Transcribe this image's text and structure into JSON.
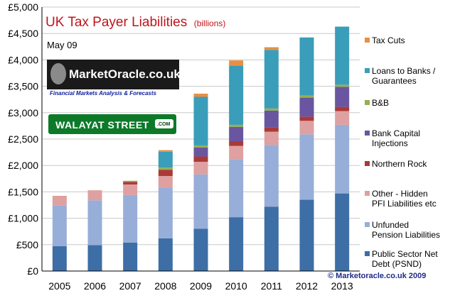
{
  "chart_data": {
    "type": "bar",
    "stacked": true,
    "title": "UK Tax Payer Liabilities",
    "subtitle": "(billions)",
    "date_label": "May 09",
    "categories": [
      "2005",
      "2006",
      "2007",
      "2008",
      "2009",
      "2010",
      "2011",
      "2012",
      "2013"
    ],
    "ylim": [
      0,
      5000
    ],
    "y_ticks": [
      "£0",
      "£500",
      "£1,000",
      "£1,500",
      "£2,000",
      "£2,500",
      "£3,000",
      "£3,500",
      "£4,000",
      "£4,500",
      "£5,000"
    ],
    "y_tick_values": [
      0,
      500,
      1000,
      1500,
      2000,
      2500,
      3000,
      3500,
      4000,
      4500,
      5000
    ],
    "grid": true,
    "legend_position": "right",
    "series": [
      {
        "name": "Public Sector Net Debt (PSND)",
        "legend_lines": [
          "Public Sector Net",
          "Debt (PSND)"
        ],
        "color": "#3d6ea6",
        "values": [
          470,
          490,
          540,
          620,
          800,
          1020,
          1220,
          1350,
          1470
        ]
      },
      {
        "name": "Unfunded Pension Liabilities",
        "legend_lines": [
          "Unfunded",
          "Pension Liabilities"
        ],
        "color": "#97aed8",
        "values": [
          770,
          850,
          900,
          960,
          1030,
          1100,
          1170,
          1240,
          1300
        ]
      },
      {
        "name": "Other - Hidden PFI Liabilities etc",
        "legend_lines": [
          "Other - Hidden",
          "PFI Liabilities etc"
        ],
        "color": "#dea0a0",
        "values": [
          185,
          190,
          200,
          220,
          240,
          250,
          250,
          255,
          260
        ]
      },
      {
        "name": "Northern Rock",
        "legend_lines": [
          "Northern Rock"
        ],
        "color": "#a93a38",
        "values": [
          0,
          0,
          50,
          120,
          100,
          90,
          80,
          80,
          80
        ]
      },
      {
        "name": "Bank Capital Injections",
        "legend_lines": [
          "Bank Capital",
          "Injections"
        ],
        "color": "#6a55a0",
        "values": [
          0,
          0,
          0,
          0,
          170,
          270,
          320,
          360,
          380
        ]
      },
      {
        "name": "B&B",
        "legend_lines": [
          "B&B"
        ],
        "color": "#92b050",
        "values": [
          0,
          0,
          20,
          40,
          40,
          40,
          40,
          40,
          40
        ]
      },
      {
        "name": "Loans to Banks / Guarantees",
        "legend_lines": [
          "Loans to Banks /",
          "Guarantees"
        ],
        "color": "#3a9dba",
        "values": [
          0,
          0,
          0,
          300,
          920,
          1120,
          1110,
          1100,
          1100
        ]
      },
      {
        "name": "Tax Cuts",
        "legend_lines": [
          "Tax Cuts"
        ],
        "color": "#e88f43",
        "values": [
          0,
          0,
          0,
          30,
          60,
          100,
          50,
          0,
          0
        ]
      }
    ]
  },
  "watermarks": {
    "marketoracle_name": "MarketOracle.co.uk",
    "marketoracle_tagline": "Financial Markets Analysis & Forecasts",
    "walayat_name": "WALAYAT STREET",
    "walayat_suffix": ".COM"
  },
  "copyright": "© Marketoracle.co.uk  2009",
  "colors": {
    "title": "#c0141b",
    "grid": "#c8c8c8",
    "walayat_green": "#0d7a2a"
  }
}
